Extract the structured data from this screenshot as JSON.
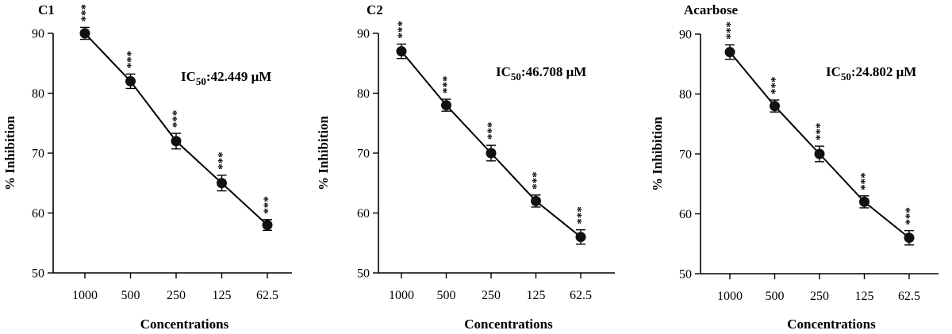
{
  "chart_data": [
    {
      "type": "line",
      "panel_label": "C1",
      "ic_prefix": "IC",
      "ic_sub": "50",
      "ic_value": ":42.449 μM",
      "xlabel": "Concentrations",
      "ylabel": "% Inhibition",
      "categories": [
        "1000",
        "500",
        "250",
        "125",
        "62.5"
      ],
      "series": [
        {
          "values": [
            90,
            82,
            72,
            65,
            58
          ],
          "errors": [
            1.0,
            1.2,
            1.3,
            1.3,
            0.9
          ]
        }
      ],
      "significance": [
        "***",
        "***",
        "***",
        "***",
        "***"
      ],
      "ylim": [
        50,
        90
      ],
      "yticks": [
        "50",
        "60",
        "70",
        "80",
        "90"
      ]
    },
    {
      "type": "line",
      "panel_label": "C2",
      "ic_prefix": "IC",
      "ic_sub": "50",
      "ic_value": ":46.708 μM",
      "xlabel": "Concentrations",
      "ylabel": "% Inhibition",
      "categories": [
        "1000",
        "500",
        "250",
        "125",
        "62.5"
      ],
      "series": [
        {
          "values": [
            87,
            78,
            70,
            62,
            56
          ],
          "errors": [
            1.2,
            1.0,
            1.3,
            1.0,
            1.2
          ]
        }
      ],
      "significance": [
        "***",
        "***",
        "***",
        "***",
        "***"
      ],
      "ylim": [
        50,
        90
      ],
      "yticks": [
        "50",
        "60",
        "70",
        "80",
        "90"
      ]
    },
    {
      "type": "line",
      "panel_label": "Acarbose",
      "ic_prefix": "IC",
      "ic_sub": "50",
      "ic_value": ":24.802 μM",
      "xlabel": "Concentrations",
      "ylabel": "% Inhibition",
      "categories": [
        "1000",
        "500",
        "250",
        "125",
        "62.5"
      ],
      "series": [
        {
          "values": [
            87,
            78,
            70,
            62,
            56
          ],
          "errors": [
            1.2,
            1.0,
            1.3,
            1.0,
            1.2
          ]
        }
      ],
      "significance": [
        "***",
        "***",
        "***",
        "***",
        "***"
      ],
      "ylim": [
        50,
        90
      ],
      "yticks": [
        "50",
        "60",
        "70",
        "80",
        "90"
      ]
    }
  ]
}
